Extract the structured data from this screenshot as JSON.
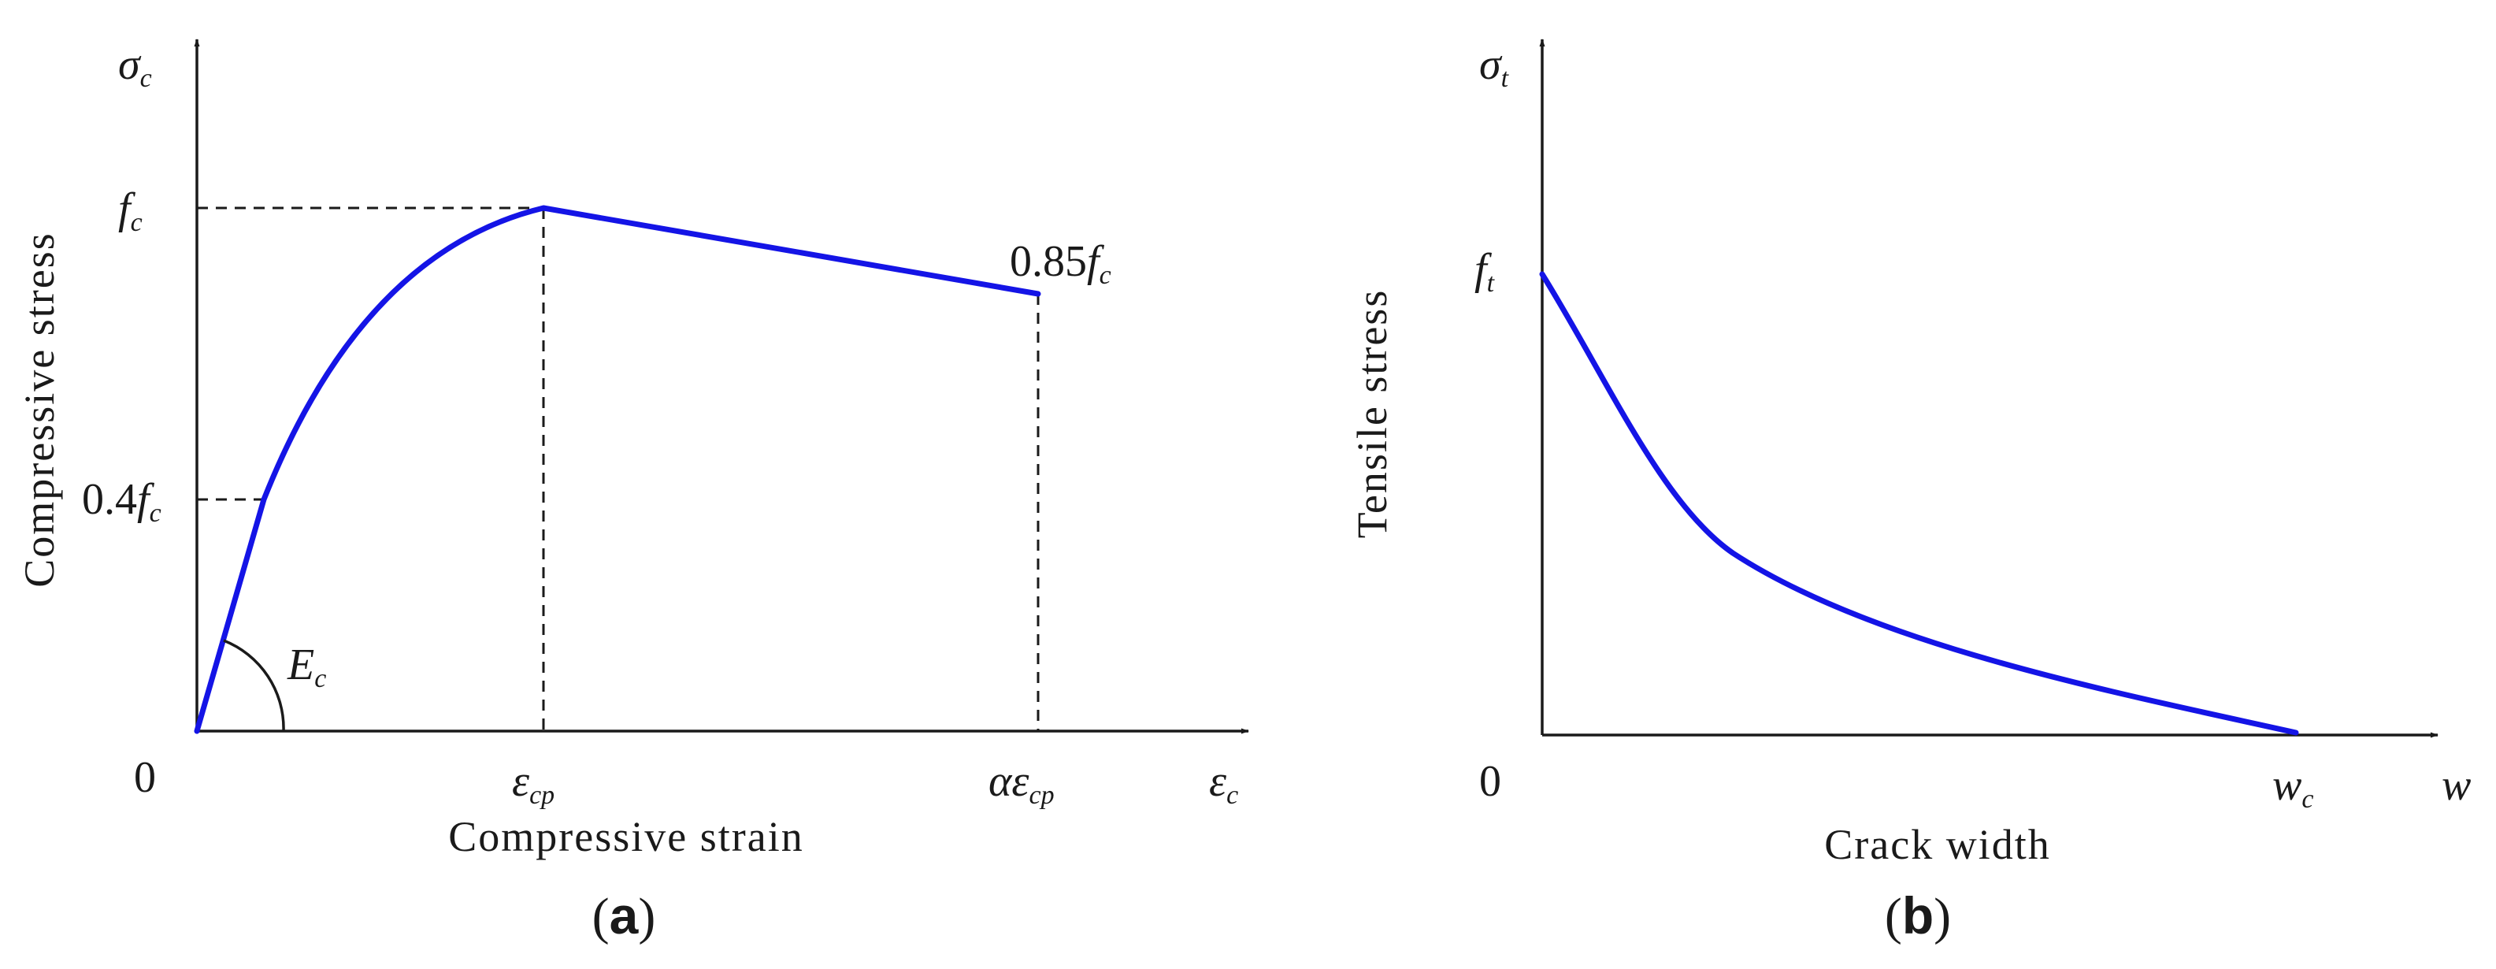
{
  "panels": {
    "a": {
      "label_open": "(",
      "label_letter": "a",
      "label_close": ")",
      "y_symbol": "σ",
      "y_symbol_sub": "c",
      "x_symbol": "ε",
      "x_symbol_sub": "c",
      "origin": "0",
      "y_title": "Compressive stress",
      "x_title": "Compressive strain",
      "fc_tick": {
        "base": "f",
        "sub": "c"
      },
      "fc04_tick": {
        "prefix": "0.4",
        "base": "f",
        "sub": "c"
      },
      "eps_cp_tick": {
        "base": "ε",
        "sub": "cp"
      },
      "alpha_eps_tick": {
        "prefix": "α",
        "base": "ε",
        "sub": "cp"
      },
      "end_label": {
        "prefix": "0.85",
        "base": "f",
        "sub": "c"
      },
      "modulus_label": {
        "base": "E",
        "sub": "c"
      }
    },
    "b": {
      "label_open": "(",
      "label_letter": "b",
      "label_close": ")",
      "y_symbol": "σ",
      "y_symbol_sub": "t",
      "x_symbol": "w",
      "origin": "0",
      "y_title": "Tensile stress",
      "x_title": "Crack width",
      "ft_tick": {
        "base": "f",
        "sub": "t"
      },
      "wc_tick": {
        "base": "w",
        "sub": "c"
      }
    }
  },
  "colors": {
    "curve": "#1414e6",
    "axes": "#1a1a1a"
  }
}
